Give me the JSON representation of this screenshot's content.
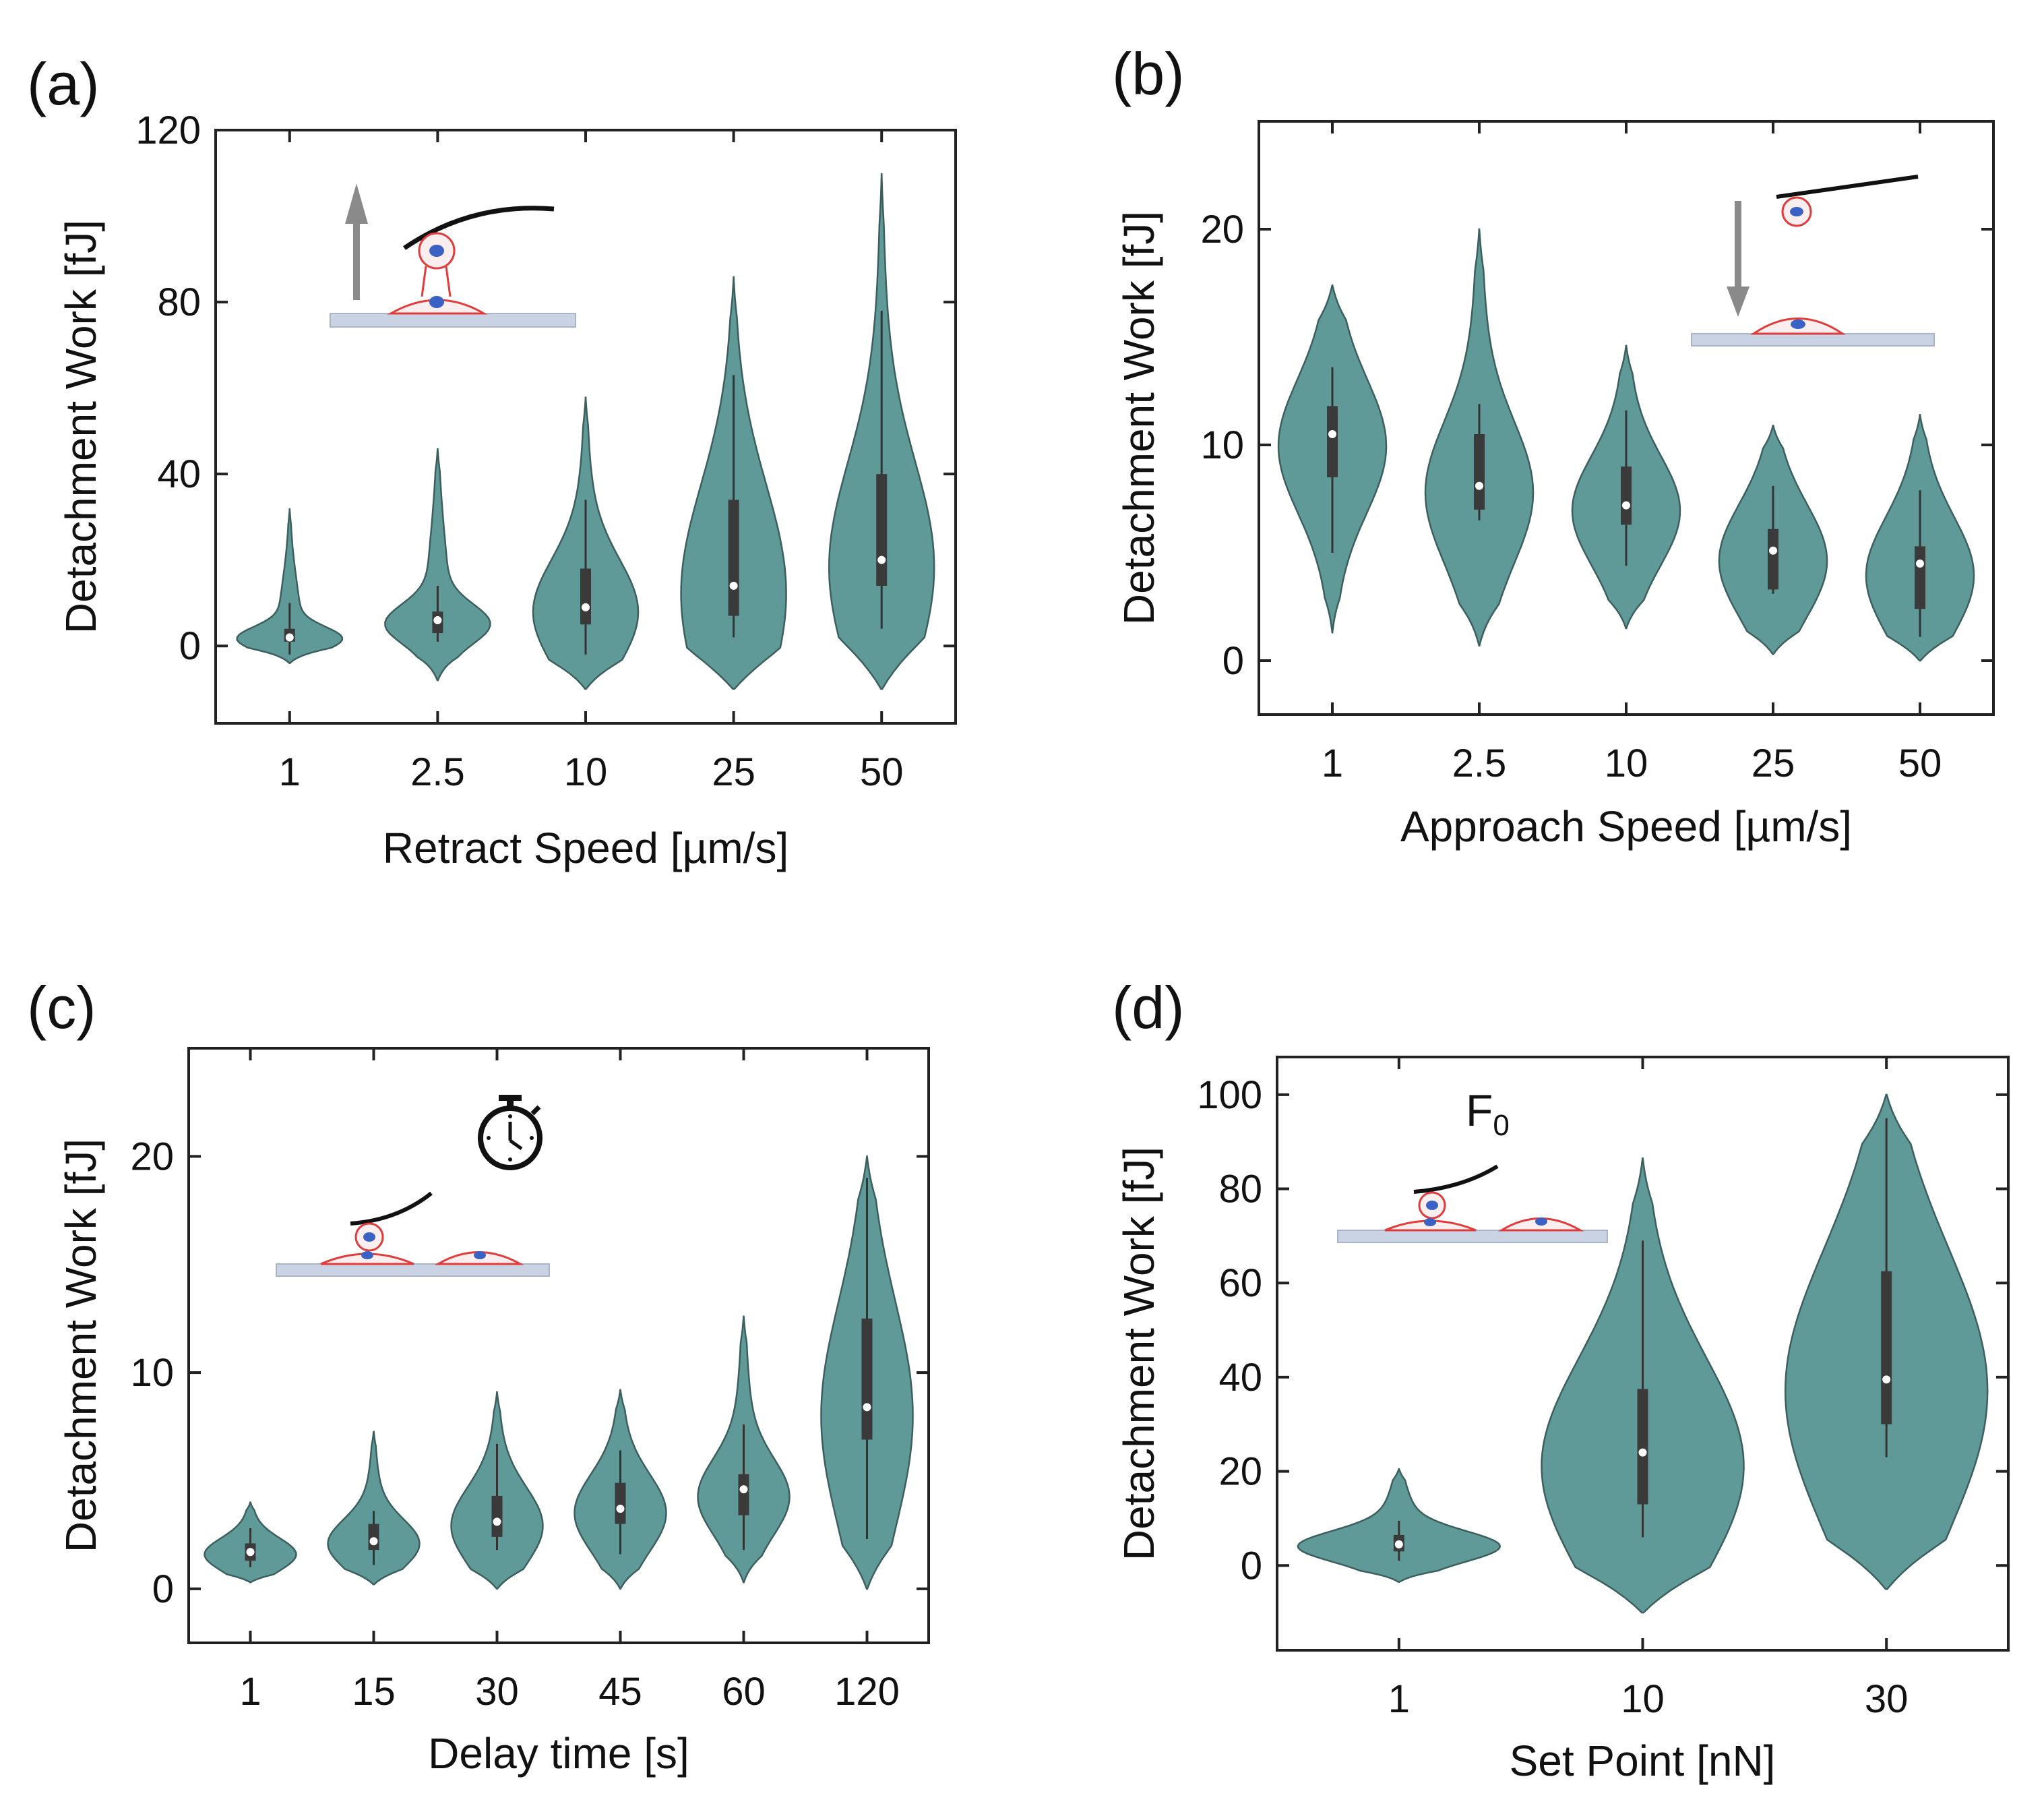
{
  "chart_data": [
    {
      "type": "violin",
      "panel": "(a)",
      "xlabel": "Retract Speed [µm/s]",
      "ylabel": "Detachment Work [fJ]",
      "ylim": [
        -18,
        120
      ],
      "yticks": [
        0,
        40,
        80,
        120
      ],
      "categories": [
        "1",
        "2.5",
        "10",
        "25",
        "50"
      ],
      "median": [
        2,
        6,
        9,
        14,
        20
      ],
      "q1": [
        1,
        3,
        5,
        7,
        14
      ],
      "q3": [
        4,
        8,
        18,
        34,
        40
      ],
      "whisker_low": [
        -2,
        1,
        -2,
        2,
        4
      ],
      "whisker_high": [
        10,
        14,
        34,
        63,
        78
      ],
      "min": [
        -4,
        -8,
        -10,
        -10,
        -10
      ],
      "max": [
        32,
        46,
        58,
        86,
        110
      ]
    },
    {
      "type": "violin",
      "panel": "(b)",
      "xlabel": "Approach Speed [µm/s]",
      "ylabel": "Detachment Work [fJ]",
      "ylim": [
        -2.5,
        25
      ],
      "yticks": [
        0,
        10,
        20
      ],
      "categories": [
        "1",
        "2.5",
        "10",
        "25",
        "50"
      ],
      "median": [
        10.5,
        8.1,
        7.2,
        5.1,
        4.5
      ],
      "q1": [
        8.5,
        7,
        6.3,
        3.3,
        2.4
      ],
      "q3": [
        11.8,
        10.5,
        9,
        6.1,
        5.3
      ],
      "whisker_low": [
        5,
        6.5,
        4.4,
        3.1,
        1.1
      ],
      "whisker_high": [
        13.6,
        11.9,
        11.6,
        8.1,
        7.9
      ],
      "min": [
        1.3,
        0.7,
        1.5,
        0.3,
        0
      ],
      "max": [
        17.4,
        20,
        14.6,
        10.9,
        11.4
      ]
    },
    {
      "type": "violin",
      "panel": "(c)",
      "xlabel": "Delay time [s]",
      "ylabel": "Detachment Work [fJ]",
      "ylim": [
        -2.5,
        25
      ],
      "yticks": [
        0,
        10,
        20
      ],
      "categories": [
        "1",
        "15",
        "30",
        "45",
        "60",
        "120"
      ],
      "median": [
        1.7,
        2.2,
        3.1,
        3.7,
        4.6,
        8.4
      ],
      "q1": [
        1.3,
        1.8,
        2.4,
        3,
        3.4,
        6.9
      ],
      "q3": [
        2.1,
        3,
        4.3,
        4.9,
        5.3,
        12.5
      ],
      "whisker_low": [
        1,
        1.1,
        1.8,
        1.6,
        1.8,
        2.3
      ],
      "whisker_high": [
        2.8,
        3.6,
        6.7,
        6.4,
        7.6,
        19
      ],
      "min": [
        0.3,
        0.2,
        0,
        0,
        0.3,
        0
      ],
      "max": [
        4,
        7.3,
        9.1,
        9.2,
        12.6,
        20
      ]
    },
    {
      "type": "violin",
      "panel": "(d)",
      "xlabel": "Set Point [nN]",
      "ylabel": "Detachment Work [fJ]",
      "ylim": [
        -18,
        108
      ],
      "yticks": [
        0,
        20,
        40,
        60,
        80,
        100
      ],
      "categories": [
        "1",
        "10",
        "30"
      ],
      "median": [
        4.5,
        24,
        39.5
      ],
      "q1": [
        3,
        13,
        30
      ],
      "q3": [
        6.5,
        37.5,
        62.5
      ],
      "whisker_low": [
        1,
        6,
        23
      ],
      "whisker_high": [
        9.5,
        69,
        95
      ],
      "min": [
        -3.5,
        -10,
        -5
      ],
      "max": [
        20.5,
        86.5,
        100
      ]
    }
  ],
  "insets": {
    "d_label": "F",
    "d_label_sub": "0"
  }
}
